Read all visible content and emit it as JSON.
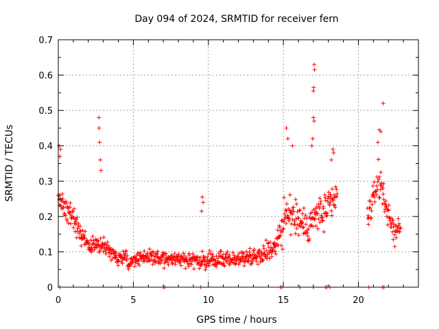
{
  "chart_data": {
    "type": "scatter",
    "title": "Day 094 of 2024, SRMTID for receiver fern",
    "xlabel": "GPS time / hours",
    "ylabel": "SRMTID / TECUs",
    "xlim": [
      0,
      24
    ],
    "ylim": [
      0,
      0.7
    ],
    "xticks": [
      0,
      5,
      10,
      15,
      20
    ],
    "yticks": [
      0,
      0.1,
      0.2,
      0.3,
      0.4,
      0.5,
      0.6,
      0.7
    ],
    "xtick_labels": [
      "0",
      "5",
      "10",
      "15",
      "20"
    ],
    "ytick_labels": [
      "0",
      "0.1",
      "0.2",
      "0.3",
      "0.4",
      "0.5",
      "0.6",
      "0.7"
    ],
    "grid": true,
    "marker": "+",
    "color": "#ff0000",
    "series": [
      {
        "name": "SRMTID",
        "profile": {
          "hours": [
            0.0,
            0.3,
            1.0,
            1.5,
            2.0,
            2.5,
            3.0,
            3.5,
            4.0,
            5.0,
            6.0,
            7.0,
            8.0,
            9.0,
            10.0,
            11.0,
            12.0,
            13.0,
            14.0,
            14.5,
            15.0,
            15.5,
            16.0,
            16.5,
            17.0,
            17.5,
            18.0,
            18.5
          ],
          "median": [
            0.25,
            0.24,
            0.19,
            0.15,
            0.12,
            0.12,
            0.12,
            0.1,
            0.08,
            0.08,
            0.09,
            0.08,
            0.08,
            0.08,
            0.07,
            0.08,
            0.08,
            0.09,
            0.1,
            0.13,
            0.18,
            0.21,
            0.19,
            0.17,
            0.19,
            0.21,
            0.22,
            0.25
          ],
          "spread": [
            0.05,
            0.05,
            0.05,
            0.04,
            0.03,
            0.04,
            0.04,
            0.03,
            0.03,
            0.03,
            0.03,
            0.03,
            0.03,
            0.03,
            0.03,
            0.03,
            0.03,
            0.03,
            0.04,
            0.06,
            0.08,
            0.09,
            0.08,
            0.07,
            0.08,
            0.09,
            0.08,
            0.08
          ]
        },
        "profile_late": {
          "hours": [
            20.6,
            21.0,
            21.3,
            21.6,
            22.0,
            22.5,
            22.8
          ],
          "median": [
            0.2,
            0.25,
            0.3,
            0.28,
            0.2,
            0.15,
            0.18
          ],
          "spread": [
            0.04,
            0.06,
            0.07,
            0.07,
            0.05,
            0.04,
            0.04
          ]
        },
        "peaks": [
          {
            "x": 0.05,
            "y": 0.4
          },
          {
            "x": 0.15,
            "y": 0.39
          },
          {
            "x": 0.1,
            "y": 0.37
          },
          {
            "x": 2.7,
            "y": 0.48
          },
          {
            "x": 2.72,
            "y": 0.45
          },
          {
            "x": 2.75,
            "y": 0.41
          },
          {
            "x": 2.8,
            "y": 0.36
          },
          {
            "x": 2.85,
            "y": 0.33
          },
          {
            "x": 9.6,
            "y": 0.255
          },
          {
            "x": 9.65,
            "y": 0.24
          },
          {
            "x": 9.55,
            "y": 0.215
          },
          {
            "x": 15.2,
            "y": 0.45
          },
          {
            "x": 15.3,
            "y": 0.42
          },
          {
            "x": 15.6,
            "y": 0.4
          },
          {
            "x": 17.0,
            "y": 0.48
          },
          {
            "x": 17.05,
            "y": 0.47
          },
          {
            "x": 16.95,
            "y": 0.42
          },
          {
            "x": 16.9,
            "y": 0.4
          },
          {
            "x": 17.02,
            "y": 0.565
          },
          {
            "x": 17.05,
            "y": 0.63
          },
          {
            "x": 17.08,
            "y": 0.615
          },
          {
            "x": 17.0,
            "y": 0.555
          },
          {
            "x": 18.3,
            "y": 0.39
          },
          {
            "x": 18.35,
            "y": 0.38
          },
          {
            "x": 18.2,
            "y": 0.36
          },
          {
            "x": 21.4,
            "y": 0.445
          },
          {
            "x": 21.5,
            "y": 0.44
          },
          {
            "x": 21.3,
            "y": 0.41
          },
          {
            "x": 21.65,
            "y": 0.52
          }
        ],
        "zeros": [
          0.1,
          4.2,
          7.0,
          7.1,
          9.5,
          14.8,
          14.9,
          16.1,
          17.0,
          17.8,
          17.9,
          18.1,
          20.7,
          21.6,
          21.7
        ]
      }
    ]
  }
}
